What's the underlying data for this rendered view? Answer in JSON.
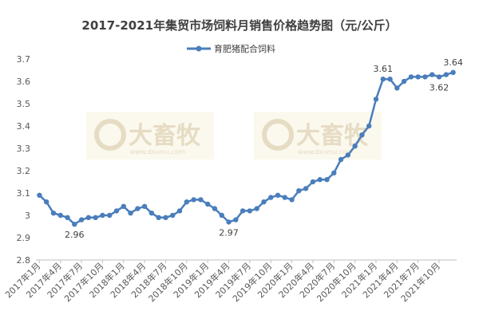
{
  "chart_data": {
    "type": "line",
    "title": "2017-2021年集贸市场饲料月销售价格趋势图（元/公斤）",
    "xlabel": "",
    "ylabel": "",
    "ylim": [
      2.8,
      3.7
    ],
    "yticks": [
      "2.8",
      "2.9",
      "3",
      "3.1",
      "3.2",
      "3.3",
      "3.4",
      "3.5",
      "3.6",
      "3.7"
    ],
    "grid": "none",
    "legend_position": "top",
    "x_tick_labels": [
      "2017年1月",
      "2017年4月",
      "2017年7月",
      "2017年10月",
      "2018年1月",
      "2018年4月",
      "2018年7月",
      "2018年10月",
      "2019年1月",
      "2019年4月",
      "2019年7月",
      "2019年10月",
      "2020年1月",
      "2020年4月",
      "2020年7月",
      "2020年10月",
      "2021年1月",
      "2021年4月",
      "2021年7月",
      "2021年10月"
    ],
    "categories": [
      "2017年1月",
      "2017年2月",
      "2017年3月",
      "2017年4月",
      "2017年5月",
      "2017年6月",
      "2017年7月",
      "2017年8月",
      "2017年9月",
      "2017年10月",
      "2017年11月",
      "2017年12月",
      "2018年1月",
      "2018年2月",
      "2018年3月",
      "2018年4月",
      "2018年5月",
      "2018年6月",
      "2018年7月",
      "2018年8月",
      "2018年9月",
      "2018年10月",
      "2018年11月",
      "2018年12月",
      "2019年1月",
      "2019年2月",
      "2019年3月",
      "2019年4月",
      "2019年5月",
      "2019年6月",
      "2019年7月",
      "2019年8月",
      "2019年9月",
      "2019年10月",
      "2019年11月",
      "2019年12月",
      "2020年1月",
      "2020年2月",
      "2020年3月",
      "2020年4月",
      "2020年5月",
      "2020年6月",
      "2020年7月",
      "2020年8月",
      "2020年9月",
      "2020年10月",
      "2020年11月",
      "2020年12月",
      "2021年1月",
      "2021年2月",
      "2021年3月",
      "2021年4月",
      "2021年5月",
      "2021年6月",
      "2021年7月",
      "2021年8月",
      "2021年9月",
      "2021年10月",
      "2021年11月",
      "2021年12月"
    ],
    "series": [
      {
        "name": "育肥猪配合饲料",
        "color": "#4a7ebb",
        "values": [
          3.09,
          3.06,
          3.01,
          3.0,
          2.99,
          2.96,
          2.98,
          2.99,
          2.99,
          3.0,
          3.0,
          3.02,
          3.04,
          3.01,
          3.03,
          3.04,
          3.01,
          2.99,
          2.99,
          3.0,
          3.02,
          3.06,
          3.07,
          3.07,
          3.05,
          3.03,
          3.0,
          2.97,
          2.98,
          3.02,
          3.02,
          3.03,
          3.06,
          3.08,
          3.09,
          3.08,
          3.07,
          3.11,
          3.12,
          3.15,
          3.16,
          3.16,
          3.19,
          3.25,
          3.27,
          3.31,
          3.36,
          3.4,
          3.52,
          3.61,
          3.61,
          3.57,
          3.6,
          3.62,
          3.62,
          3.62,
          3.63,
          3.62,
          3.63,
          3.64
        ]
      }
    ],
    "annotations": [
      {
        "index": 5,
        "text": "2.96",
        "pos": "below"
      },
      {
        "index": 27,
        "text": "2.97",
        "pos": "below"
      },
      {
        "index": 49,
        "text": "3.61",
        "pos": "above"
      },
      {
        "index": 57,
        "text": "3.62",
        "pos": "below"
      },
      {
        "index": 59,
        "text": "3.64",
        "pos": "above"
      }
    ]
  },
  "watermark": {
    "brand": "大畜牧",
    "url": "www.dxumu.com",
    "color": "#e6dcc4"
  }
}
